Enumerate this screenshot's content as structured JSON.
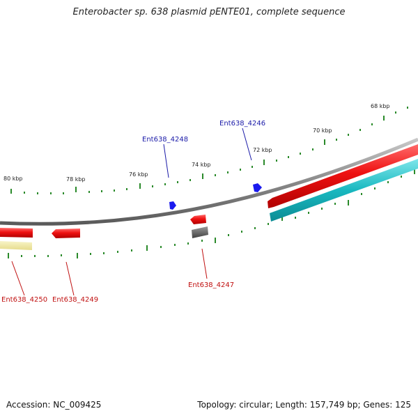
{
  "title": "Enterobacter sp. 638 plasmid pENTE01, complete sequence",
  "colors": {
    "backbone": "#8a8a8a",
    "forward_cds": "#ee1111",
    "reverse_cds": "#ee1111",
    "forward_other": "#1a1aee",
    "gray_feature": "#606060",
    "cyan_feature": "#18b8c0",
    "yellow_feature": "#eee8a0",
    "tick": "#2a8a2a",
    "blue_label": "#1a1aa8",
    "red_label": "#c01010"
  },
  "ticks": {
    "labels": [
      {
        "text": "68 kbp"
      },
      {
        "text": "70 kbp"
      },
      {
        "text": "72 kbp"
      },
      {
        "text": "74 kbp"
      },
      {
        "text": "76 kbp"
      },
      {
        "text": "78 kbp"
      },
      {
        "text": "80 kbp"
      }
    ]
  },
  "genes": {
    "top": [
      {
        "name": "Ent638_4248"
      },
      {
        "name": "Ent638_4246"
      }
    ],
    "bottom": [
      {
        "name": "Ent638_4250"
      },
      {
        "name": "Ent638_4249"
      },
      {
        "name": "Ent638_4247"
      }
    ]
  },
  "footer": {
    "accession": "Accession: NC_009425",
    "summary": "Topology: circular; Length: 157,749 bp; Genes: 125"
  }
}
